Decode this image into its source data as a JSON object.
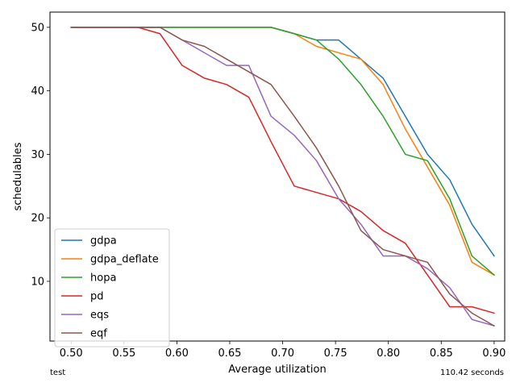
{
  "chart_data": {
    "type": "line",
    "xlabel": "Average utilization",
    "ylabel": "schedulables",
    "xlim": [
      0.48,
      0.91
    ],
    "ylim": [
      0.6,
      52.4
    ],
    "xticks": [
      0.5,
      0.55,
      0.6,
      0.65,
      0.7,
      0.75,
      0.8,
      0.85,
      0.9
    ],
    "xtick_labels": [
      "0.50",
      "0.55",
      "0.60",
      "0.65",
      "0.70",
      "0.75",
      "0.80",
      "0.85",
      "0.90"
    ],
    "yticks": [
      10,
      20,
      30,
      40,
      50
    ],
    "ytick_labels": [
      "10",
      "20",
      "30",
      "40",
      "50"
    ],
    "grid": false,
    "legend_position": "lower-left",
    "x": [
      0.5,
      0.521,
      0.542,
      0.563,
      0.584,
      0.605,
      0.626,
      0.647,
      0.668,
      0.689,
      0.711,
      0.732,
      0.753,
      0.774,
      0.795,
      0.816,
      0.837,
      0.858,
      0.879,
      0.9
    ],
    "series": [
      {
        "name": "gdpa",
        "color": "#1f77b4",
        "values": [
          50,
          50,
          50,
          50,
          50,
          50,
          50,
          50,
          50,
          50,
          49,
          48,
          48,
          45,
          42,
          36,
          30,
          26,
          19,
          14
        ]
      },
      {
        "name": "gdpa_deflate",
        "color": "#ff7f0e",
        "values": [
          50,
          50,
          50,
          50,
          50,
          50,
          50,
          50,
          50,
          50,
          49,
          47,
          46,
          45,
          41,
          34,
          28,
          22,
          13,
          11
        ]
      },
      {
        "name": "hopa",
        "color": "#2ca02c",
        "values": [
          50,
          50,
          50,
          50,
          50,
          50,
          50,
          50,
          50,
          50,
          49,
          48,
          45,
          41,
          36,
          30,
          29,
          23,
          14,
          11
        ]
      },
      {
        "name": "pd",
        "color": "#d62728",
        "values": [
          50,
          50,
          50,
          50,
          49,
          44,
          42,
          41,
          39,
          32,
          25,
          24,
          23,
          21,
          18,
          16,
          11,
          6,
          6,
          5
        ]
      },
      {
        "name": "eqs",
        "color": "#9467bd",
        "values": [
          50,
          50,
          50,
          50,
          50,
          48,
          46,
          44,
          44,
          36,
          33,
          29,
          23,
          19,
          14,
          14,
          12,
          9,
          4,
          3
        ]
      },
      {
        "name": "eqf",
        "color": "#8c564b",
        "values": [
          50,
          50,
          50,
          50,
          50,
          48,
          47,
          45,
          43,
          41,
          36,
          31,
          25,
          18,
          15,
          14,
          13,
          8,
          5,
          3
        ]
      }
    ]
  },
  "footer": {
    "left": "test",
    "right": "110.42 seconds"
  }
}
